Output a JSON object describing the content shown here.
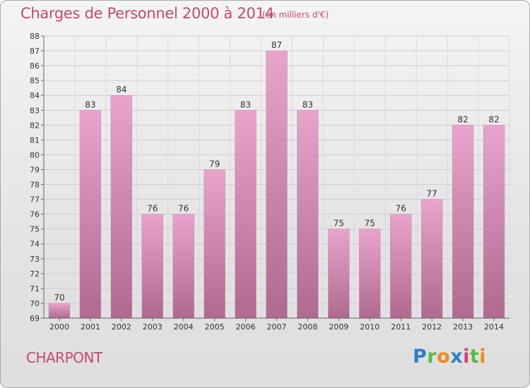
{
  "header": {
    "title": "Charges de Personnel 2000 à 2014",
    "subtitle": "(en milliers d'€)"
  },
  "footer": {
    "commune": "CHARPONT",
    "logo_text": "Proxiti",
    "logo_letters": [
      {
        "ch": "P",
        "color": "#2f7fc8"
      },
      {
        "ch": "r",
        "color": "#58b947"
      },
      {
        "ch": "o",
        "color": "#f08a1e"
      },
      {
        "ch": "x",
        "color": "#2f7fc8"
      },
      {
        "ch": "i",
        "color": "#e03c78"
      },
      {
        "ch": "t",
        "color": "#58b947"
      },
      {
        "ch": "i",
        "color": "#f08a1e"
      }
    ]
  },
  "colors": {
    "accent": "#c44a6e",
    "bar_top": "#e8a4cc",
    "bar_bottom": "#b0698f"
  },
  "chart_data": {
    "type": "bar",
    "title": "Charges de Personnel 2000 à 2014",
    "subtitle": "(en milliers d'€)",
    "categories": [
      "2000",
      "2001",
      "2002",
      "2003",
      "2004",
      "2005",
      "2006",
      "2007",
      "2008",
      "2009",
      "2010",
      "2011",
      "2012",
      "2013",
      "2014"
    ],
    "values": [
      70,
      83,
      84,
      76,
      76,
      79,
      83,
      87,
      83,
      75,
      75,
      76,
      77,
      82,
      82
    ],
    "ylim": [
      69,
      88
    ],
    "yticks": [
      69,
      70,
      71,
      72,
      73,
      74,
      75,
      76,
      77,
      78,
      79,
      80,
      81,
      82,
      83,
      84,
      85,
      86,
      87,
      88
    ],
    "grid": true,
    "xlabel": "",
    "ylabel": ""
  }
}
